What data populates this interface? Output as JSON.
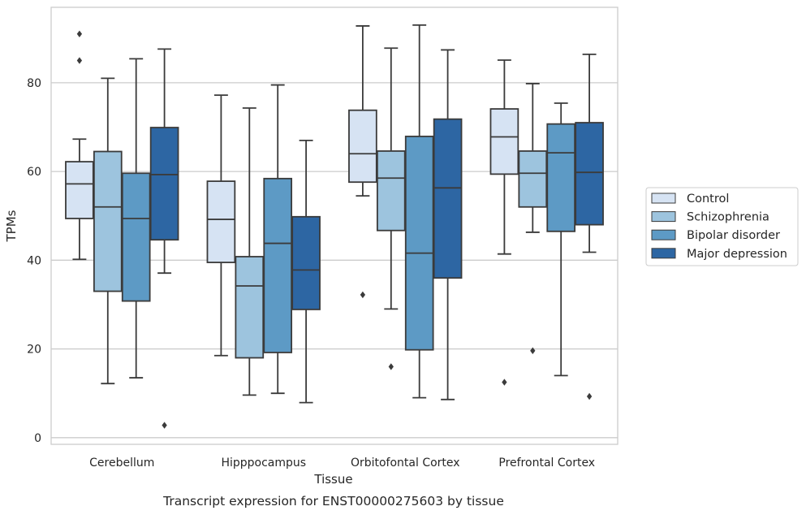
{
  "chart_data": {
    "type": "boxplot",
    "caption": "Transcript expression for ENST00000275603 by tissue",
    "xlabel": "Tissue",
    "ylabel": "TPMs",
    "ylim": [
      -1.5,
      97
    ],
    "yticks": [
      0,
      20,
      40,
      60,
      80
    ],
    "grid": "horizontal",
    "legend_position": "right",
    "categories": [
      "Cerebellum",
      "Hipppocampus",
      "Orbitofontal Cortex",
      "Prefrontal Cortex"
    ],
    "series": [
      {
        "name": "Control",
        "color": "#d6e3f3",
        "boxes": [
          {
            "whislo": 40.2,
            "q1": 49.4,
            "med": 57.2,
            "q3": 62.2,
            "whishi": 67.3,
            "fliers": [
              85,
              91
            ]
          },
          {
            "whislo": 18.5,
            "q1": 39.5,
            "med": 49.2,
            "q3": 57.8,
            "whishi": 77.2,
            "fliers": []
          },
          {
            "whislo": 54.5,
            "q1": 57.6,
            "med": 64.0,
            "q3": 73.8,
            "whishi": 92.8,
            "fliers": [
              32.2
            ]
          },
          {
            "whislo": 41.4,
            "q1": 59.4,
            "med": 67.8,
            "q3": 74.1,
            "whishi": 85.1,
            "fliers": [
              12.5
            ]
          }
        ]
      },
      {
        "name": "Schizophrenia",
        "color": "#9dc4de",
        "boxes": [
          {
            "whislo": 12.2,
            "q1": 33.0,
            "med": 52.0,
            "q3": 64.5,
            "whishi": 81.0,
            "fliers": []
          },
          {
            "whislo": 9.6,
            "q1": 18.0,
            "med": 34.2,
            "q3": 40.8,
            "whishi": 74.3,
            "fliers": []
          },
          {
            "whislo": 29.0,
            "q1": 46.7,
            "med": 58.5,
            "q3": 64.6,
            "whishi": 87.8,
            "fliers": [
              16.0
            ]
          },
          {
            "whislo": 46.3,
            "q1": 52.0,
            "med": 59.6,
            "q3": 64.6,
            "whishi": 79.8,
            "fliers": [
              19.6
            ]
          }
        ]
      },
      {
        "name": "Bipolar disorder",
        "color": "#5d9ac5",
        "boxes": [
          {
            "whislo": 13.5,
            "q1": 30.8,
            "med": 49.4,
            "q3": 59.6,
            "whishi": 85.4,
            "fliers": []
          },
          {
            "whislo": 10.0,
            "q1": 19.2,
            "med": 43.8,
            "q3": 58.4,
            "whishi": 79.5,
            "fliers": []
          },
          {
            "whislo": 9.0,
            "q1": 19.8,
            "med": 41.6,
            "q3": 67.9,
            "whishi": 93.0,
            "fliers": []
          },
          {
            "whislo": 14.0,
            "q1": 46.5,
            "med": 64.2,
            "q3": 70.7,
            "whishi": 75.4,
            "fliers": []
          }
        ]
      },
      {
        "name": "Major depression",
        "color": "#2d66a3",
        "boxes": [
          {
            "whislo": 37.1,
            "q1": 44.6,
            "med": 59.3,
            "q3": 69.9,
            "whishi": 87.6,
            "fliers": [
              2.8
            ]
          },
          {
            "whislo": 7.9,
            "q1": 28.9,
            "med": 37.8,
            "q3": 49.8,
            "whishi": 67.0,
            "fliers": []
          },
          {
            "whislo": 8.6,
            "q1": 36.0,
            "med": 56.3,
            "q3": 71.8,
            "whishi": 87.4,
            "fliers": []
          },
          {
            "whislo": 41.8,
            "q1": 48.0,
            "med": 59.8,
            "q3": 71.0,
            "whishi": 86.4,
            "fliers": [
              9.3
            ]
          }
        ]
      }
    ]
  }
}
